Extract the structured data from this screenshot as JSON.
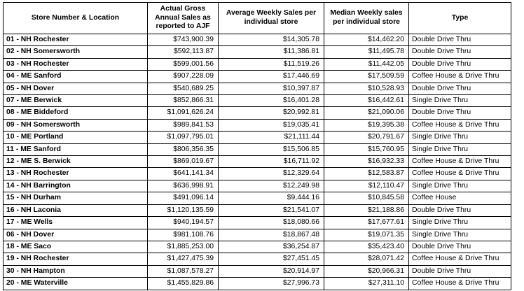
{
  "table": {
    "headers": [
      "Store Number & Location",
      "Actual Gross Annual Sales as reported to AJF",
      "Average Weekly Sales per individual store",
      "Median Weekly sales per individual store",
      "Type"
    ],
    "rows": [
      [
        "01 - NH Rochester",
        "$743,900.39",
        "$14,305.78",
        "$14,462.20",
        "Double Drive Thru"
      ],
      [
        "02 - NH Somersworth",
        "$592,113.87",
        "$11,386.81",
        "$11,495.78",
        "Double Drive Thru"
      ],
      [
        "03 - NH Rochester",
        "$599,001.56",
        "$11,519.26",
        "$11,442.05",
        "Double Drive Thru"
      ],
      [
        "04 - ME Sanford",
        "$907,228.09",
        "$17,446.69",
        "$17,509.59",
        "Coffee House & Drive Thru"
      ],
      [
        "05 - NH Dover",
        "$540,689.25",
        "$10,397.87",
        "$10,528.93",
        "Double Drive Thru"
      ],
      [
        "07 - ME Berwick",
        "$852,866.31",
        "$16,401.28",
        "$16,442.61",
        "Single Drive Thru"
      ],
      [
        "08 - ME Biddeford",
        "$1,091,626.24",
        "$20,992.81",
        "$21,090.06",
        "Double Drive Thru"
      ],
      [
        "09 - NH Somersworth",
        "$989,841.53",
        "$19,035.41",
        "$19,395.38",
        "Coffee House & Drive Thru"
      ],
      [
        "10 - ME Portland",
        "$1,097,795.01",
        "$21,111.44",
        "$20,791.67",
        "Single Drive Thru"
      ],
      [
        "11 - ME Sanford",
        "$806,356.35",
        "$15,506.85",
        "$15,760.95",
        "Single Drive Thru"
      ],
      [
        "12 - ME S. Berwick",
        "$869,019.67",
        "$16,711.92",
        "$16,932.33",
        "Coffee House & Drive Thru"
      ],
      [
        "13 - NH Rochester",
        "$641,141.34",
        "$12,329.64",
        "$12,583.87",
        "Coffee House & Drive Thru"
      ],
      [
        "14 - NH Barrington",
        "$636,998.91",
        "$12,249.98",
        "$12,110.47",
        "Single Drive Thru"
      ],
      [
        "15 - NH Durham",
        "$491,096.14",
        "$9,444.16",
        "$10,845.58",
        "Coffee House"
      ],
      [
        "16 - NH Laconia",
        "$1,120,135.59",
        "$21,541.07",
        "$21,188.86",
        "Double Drive Thru"
      ],
      [
        "17 - ME Wells",
        "$940,194.57",
        "$18,080.66",
        "$17,677.61",
        "Single Drive Thru"
      ],
      [
        "06 - NH Dover",
        "$981,108.76",
        "$18,867.48",
        "$19,071.35",
        "Single Drive Thru"
      ],
      [
        "18 - ME Saco",
        "$1,885,253.00",
        "$36,254.87",
        "$35,423.40",
        "Double Drive Thru"
      ],
      [
        "19 - NH Rochester",
        "$1,427,475.39",
        "$27,451.45",
        "$28,071.42",
        "Coffee House & Drive Thru"
      ],
      [
        "30 - NH Hampton",
        "$1,087,578.27",
        "$20,914.97",
        "$20,966.31",
        "Double Drive Thru"
      ],
      [
        "20 - ME Waterville",
        "$1,455,829.86",
        "$27,996.73",
        "$27,311.10",
        "Coffee House & Drive Thru"
      ]
    ]
  }
}
